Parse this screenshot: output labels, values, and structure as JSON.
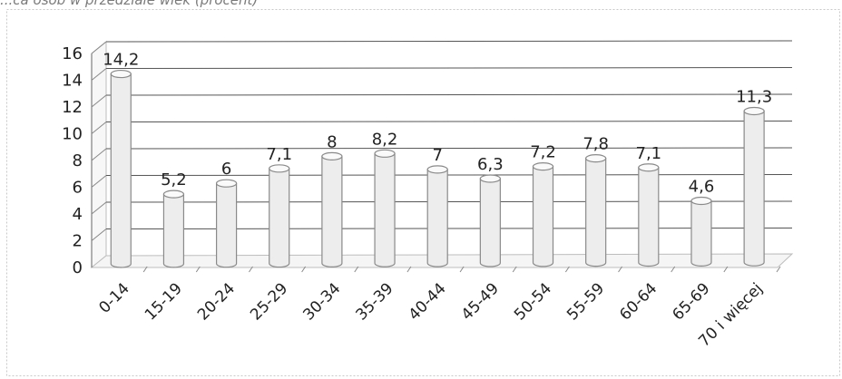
{
  "header": {
    "caption": "...ca osób w przedziale wiek (procent)"
  },
  "chart_data": {
    "type": "bar",
    "title": "",
    "xlabel": "",
    "ylabel": "",
    "categories": [
      "0-14",
      "15-19",
      "20-24",
      "25-29",
      "30-34",
      "35-39",
      "40-44",
      "45-49",
      "50-54",
      "55-59",
      "60-64",
      "65-69",
      "70 i więcej"
    ],
    "values": [
      14.2,
      5.2,
      6,
      7.1,
      8,
      8.2,
      7,
      6.3,
      7.2,
      7.8,
      7.1,
      4.6,
      11.3
    ],
    "value_labels": [
      "14,2",
      "5,2",
      "6",
      "7,1",
      "8",
      "8,2",
      "7",
      "6,3",
      "7,2",
      "7,8",
      "7,1",
      "4,6",
      "11,3"
    ],
    "ylim": [
      0,
      16
    ],
    "yticks": [
      0,
      2,
      4,
      6,
      8,
      10,
      12,
      14,
      16
    ],
    "grid": true,
    "legend": "none",
    "style": "3d-cylinder",
    "colors": {
      "bar_fill": "#ededed",
      "bar_edge": "#8a8a8a",
      "grid": "#555555",
      "text": "#222222",
      "border": "#c8c8c8"
    }
  }
}
